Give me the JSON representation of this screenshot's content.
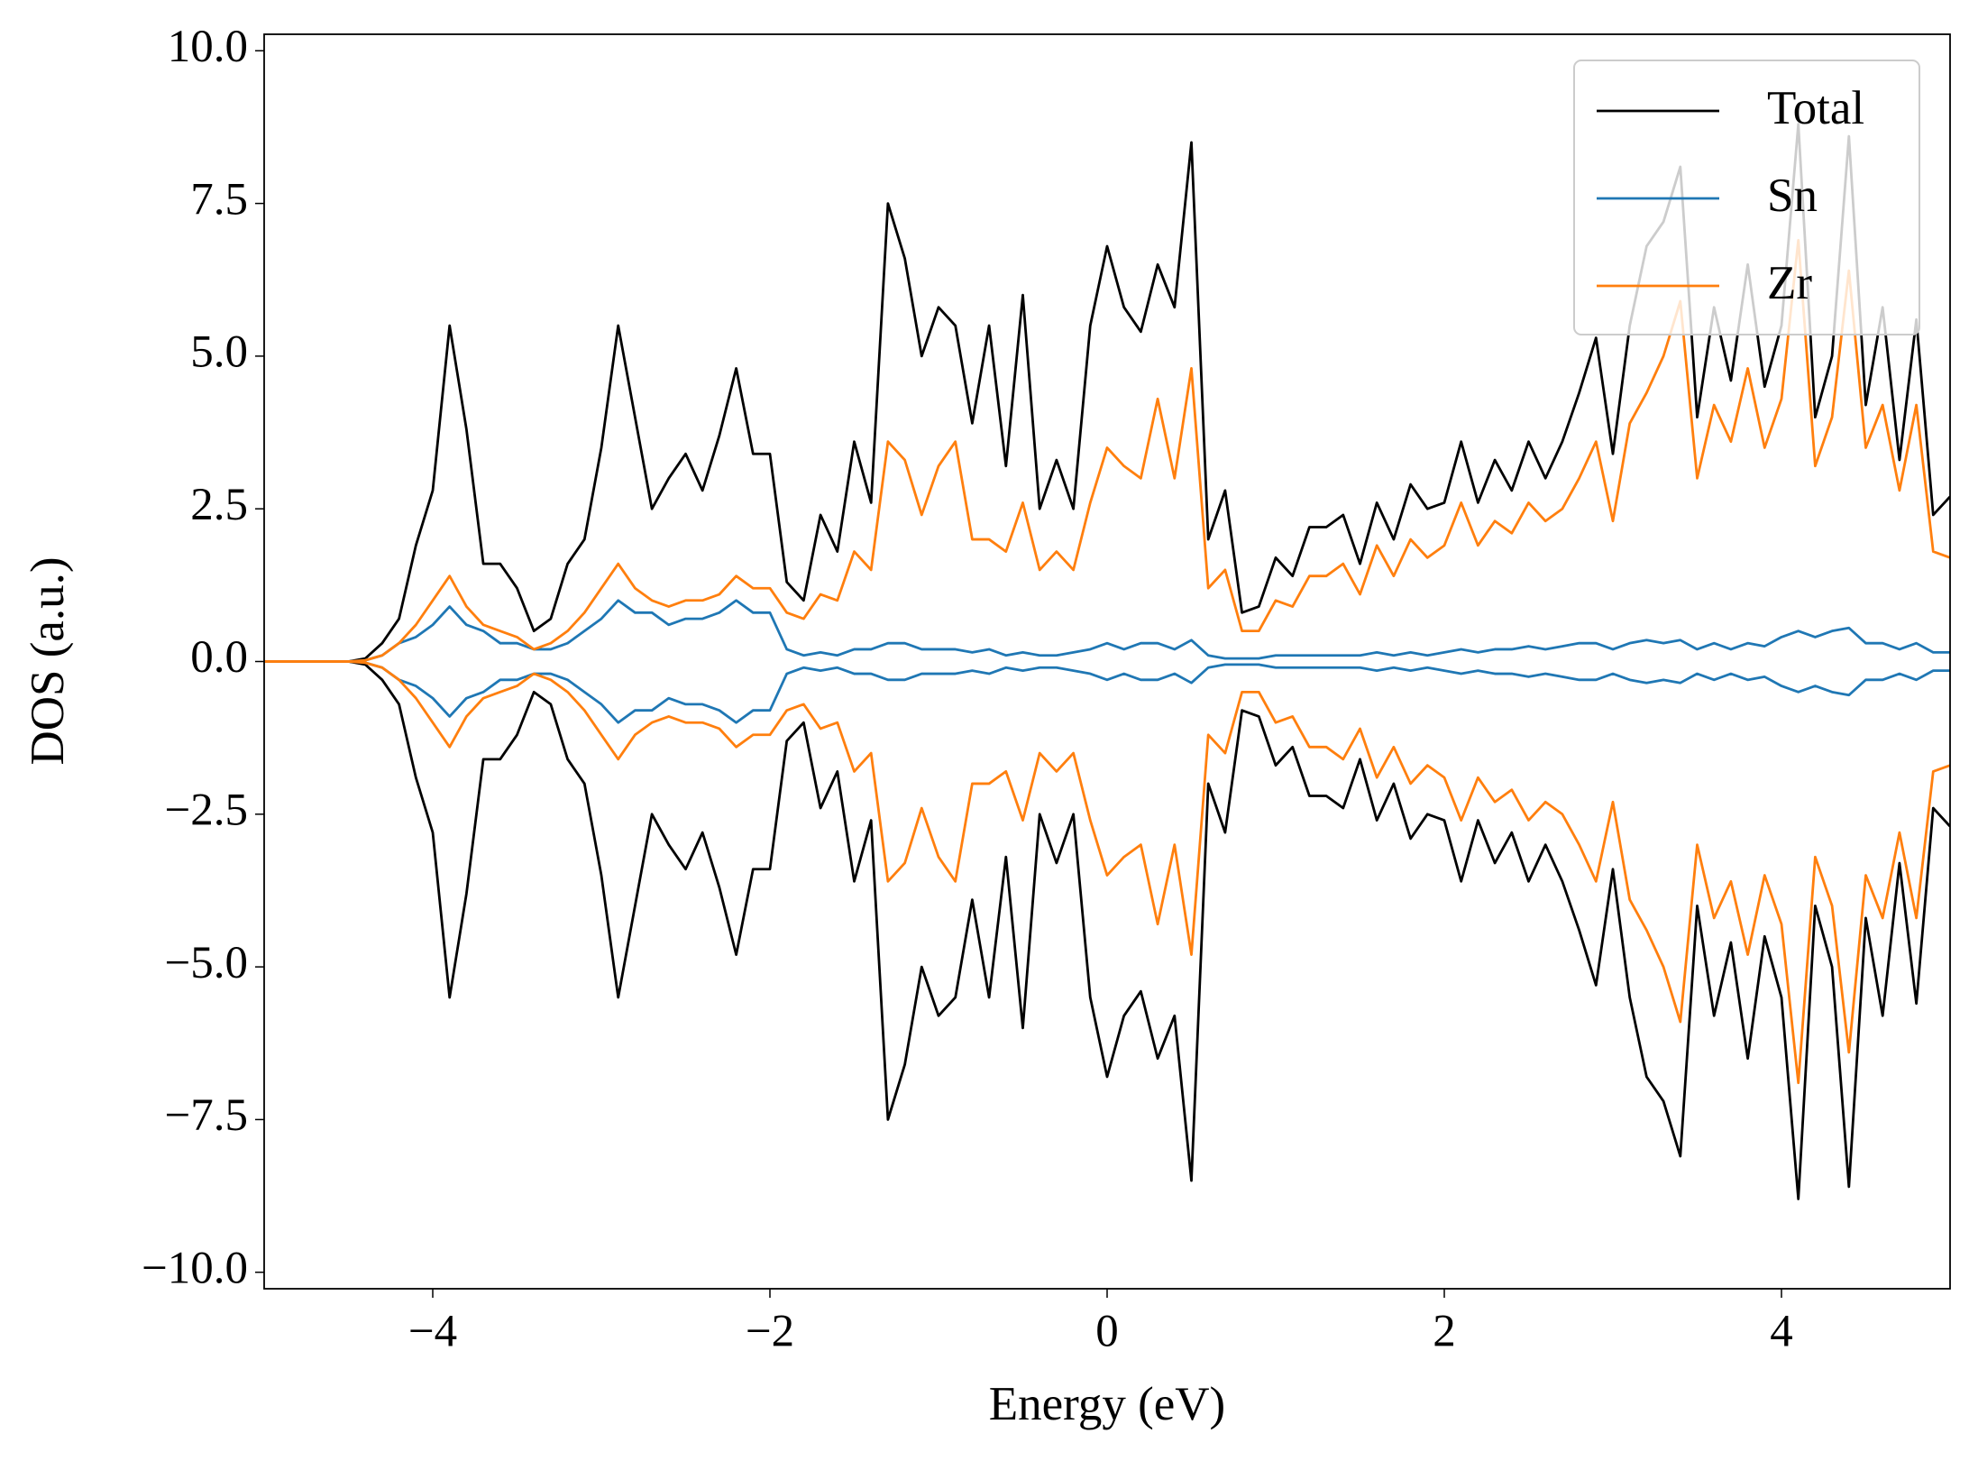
{
  "chart_data": {
    "type": "line",
    "x_label": "Energy (eV)",
    "y_label": "DOS (a.u.)",
    "xlim": [
      -5,
      5
    ],
    "ylim": [
      -10.27,
      10.27
    ],
    "xticks": [
      {
        "value": -4,
        "label": "−4"
      },
      {
        "value": -2,
        "label": "−2"
      },
      0,
      2,
      4
    ],
    "yticks": [
      {
        "value": -10,
        "label": "−10.0"
      },
      {
        "value": -7.5,
        "label": "−7.5"
      },
      {
        "value": -5,
        "label": "−5.0"
      },
      {
        "value": -2.5,
        "label": "−2.5"
      },
      {
        "value": 0,
        "label": "0.0"
      },
      2.5,
      {
        "value": 5,
        "label": "5.0"
      },
      7.5,
      {
        "value": 10,
        "label": "10.0"
      }
    ],
    "legend": "upper right",
    "x": [
      -5,
      -4.9,
      -4.8,
      -4.7,
      -4.6,
      -4.5,
      -4.4,
      -4.3,
      -4.2,
      -4.1,
      -4,
      -3.9,
      -3.8,
      -3.7,
      -3.6,
      -3.5,
      -3.4,
      -3.3,
      -3.2,
      -3.1,
      -3,
      -2.9,
      -2.8,
      -2.7,
      -2.6,
      -2.5,
      -2.4,
      -2.3,
      -2.2,
      -2.1,
      -2,
      -1.9,
      -1.8,
      -1.7,
      -1.6,
      -1.5,
      -1.4,
      -1.3,
      -1.2,
      -1.1,
      -1,
      -0.9,
      -0.8,
      -0.7,
      -0.6,
      -0.5,
      -0.4,
      -0.3,
      -0.2,
      -0.1,
      0,
      0.1,
      0.2,
      0.3,
      0.4,
      0.5,
      0.6,
      0.7,
      0.8,
      0.9,
      1,
      1.1,
      1.2,
      1.3,
      1.4,
      1.5,
      1.6,
      1.7,
      1.8,
      1.9,
      2,
      2.1,
      2.2,
      2.3,
      2.4,
      2.5,
      2.6,
      2.7,
      2.8,
      2.9,
      3,
      3.1,
      3.2,
      3.3,
      3.4,
      3.5,
      3.6,
      3.7,
      3.8,
      3.9,
      4,
      4.1,
      4.2,
      4.3,
      4.4,
      4.5,
      4.6,
      4.7,
      4.8,
      4.9,
      5
    ],
    "series": [
      {
        "name": "Total",
        "color": "#000000",
        "values": [
          0,
          0,
          0,
          0,
          0,
          0,
          0.05,
          0.3,
          0.7,
          1.9,
          2.8,
          5.5,
          3.8,
          1.6,
          1.6,
          1.2,
          0.5,
          0.7,
          1.6,
          2.0,
          3.5,
          5.5,
          4.0,
          2.5,
          3.0,
          3.4,
          2.8,
          3.7,
          4.8,
          3.4,
          3.4,
          1.3,
          1.0,
          2.4,
          1.8,
          3.6,
          2.6,
          7.5,
          6.6,
          5.0,
          5.8,
          5.5,
          3.9,
          5.5,
          3.2,
          6.0,
          2.5,
          3.3,
          2.5,
          5.5,
          6.8,
          5.8,
          5.4,
          6.5,
          5.8,
          8.5,
          2.0,
          2.8,
          0.8,
          0.9,
          1.7,
          1.4,
          2.2,
          2.2,
          2.4,
          1.6,
          2.6,
          2.0,
          2.9,
          2.5,
          2.6,
          3.6,
          2.6,
          3.3,
          2.8,
          3.6,
          3.0,
          3.6,
          4.4,
          5.3,
          3.4,
          5.5,
          6.8,
          7.2,
          8.1,
          4.0,
          5.8,
          4.6,
          6.5,
          4.5,
          5.5,
          8.8,
          4.0,
          5.0,
          8.6,
          4.2,
          5.8,
          3.3,
          5.6,
          2.4,
          2.7
        ]
      },
      {
        "color": "#000000",
        "values": [
          0,
          0,
          0,
          0,
          0,
          0,
          -0.05,
          -0.3,
          -0.7,
          -1.9,
          -2.8,
          -5.5,
          -3.8,
          -1.6,
          -1.6,
          -1.2,
          -0.5,
          -0.7,
          -1.6,
          -2.0,
          -3.5,
          -5.5,
          -4.0,
          -2.5,
          -3.0,
          -3.4,
          -2.8,
          -3.7,
          -4.8,
          -3.4,
          -3.4,
          -1.3,
          -1.0,
          -2.4,
          -1.8,
          -3.6,
          -2.6,
          -7.5,
          -6.6,
          -5.0,
          -5.8,
          -5.5,
          -3.9,
          -5.5,
          -3.2,
          -6.0,
          -2.5,
          -3.3,
          -2.5,
          -5.5,
          -6.8,
          -5.8,
          -5.4,
          -6.5,
          -5.8,
          -8.5,
          -2.0,
          -2.8,
          -0.8,
          -0.9,
          -1.7,
          -1.4,
          -2.2,
          -2.2,
          -2.4,
          -1.6,
          -2.6,
          -2.0,
          -2.9,
          -2.5,
          -2.6,
          -3.6,
          -2.6,
          -3.3,
          -2.8,
          -3.6,
          -3.0,
          -3.6,
          -4.4,
          -5.3,
          -3.4,
          -5.5,
          -6.8,
          -7.2,
          -8.1,
          -4.0,
          -5.8,
          -4.6,
          -6.5,
          -4.5,
          -5.5,
          -8.8,
          -4.0,
          -5.0,
          -8.6,
          -4.2,
          -5.8,
          -3.3,
          -5.6,
          -2.4,
          -2.7
        ]
      },
      {
        "name": "Sn",
        "color": "#1f77b4",
        "values": [
          0,
          0,
          0,
          0,
          0,
          0,
          0.02,
          0.1,
          0.3,
          0.4,
          0.6,
          0.9,
          0.6,
          0.5,
          0.3,
          0.3,
          0.2,
          0.2,
          0.3,
          0.5,
          0.7,
          1.0,
          0.8,
          0.8,
          0.6,
          0.7,
          0.7,
          0.8,
          1.0,
          0.8,
          0.8,
          0.2,
          0.1,
          0.15,
          0.1,
          0.2,
          0.2,
          0.3,
          0.3,
          0.2,
          0.2,
          0.2,
          0.15,
          0.2,
          0.1,
          0.15,
          0.1,
          0.1,
          0.15,
          0.2,
          0.3,
          0.2,
          0.3,
          0.3,
          0.2,
          0.35,
          0.1,
          0.05,
          0.05,
          0.05,
          0.1,
          0.1,
          0.1,
          0.1,
          0.1,
          0.1,
          0.15,
          0.1,
          0.15,
          0.1,
          0.15,
          0.2,
          0.15,
          0.2,
          0.2,
          0.25,
          0.2,
          0.25,
          0.3,
          0.3,
          0.2,
          0.3,
          0.35,
          0.3,
          0.35,
          0.2,
          0.3,
          0.2,
          0.3,
          0.25,
          0.4,
          0.5,
          0.4,
          0.5,
          0.55,
          0.3,
          0.3,
          0.2,
          0.3,
          0.15,
          0.15
        ]
      },
      {
        "color": "#1f77b4",
        "values": [
          0,
          0,
          0,
          0,
          0,
          0,
          -0.02,
          -0.1,
          -0.3,
          -0.4,
          -0.6,
          -0.9,
          -0.6,
          -0.5,
          -0.3,
          -0.3,
          -0.2,
          -0.2,
          -0.3,
          -0.5,
          -0.7,
          -1.0,
          -0.8,
          -0.8,
          -0.6,
          -0.7,
          -0.7,
          -0.8,
          -1.0,
          -0.8,
          -0.8,
          -0.2,
          -0.1,
          -0.15,
          -0.1,
          -0.2,
          -0.2,
          -0.3,
          -0.3,
          -0.2,
          -0.2,
          -0.2,
          -0.15,
          -0.2,
          -0.1,
          -0.15,
          -0.1,
          -0.1,
          -0.15,
          -0.2,
          -0.3,
          -0.2,
          -0.3,
          -0.3,
          -0.2,
          -0.35,
          -0.1,
          -0.05,
          -0.05,
          -0.05,
          -0.1,
          -0.1,
          -0.1,
          -0.1,
          -0.1,
          -0.1,
          -0.15,
          -0.1,
          -0.15,
          -0.1,
          -0.15,
          -0.2,
          -0.15,
          -0.2,
          -0.2,
          -0.25,
          -0.2,
          -0.25,
          -0.3,
          -0.3,
          -0.2,
          -0.3,
          -0.35,
          -0.3,
          -0.35,
          -0.2,
          -0.3,
          -0.2,
          -0.3,
          -0.25,
          -0.4,
          -0.5,
          -0.4,
          -0.5,
          -0.55,
          -0.3,
          -0.3,
          -0.2,
          -0.3,
          -0.15,
          -0.15
        ]
      },
      {
        "name": "Zr",
        "color": "#ff7f0e",
        "values": [
          0,
          0,
          0,
          0,
          0,
          0,
          0.02,
          0.1,
          0.3,
          0.6,
          1.0,
          1.4,
          0.9,
          0.6,
          0.5,
          0.4,
          0.2,
          0.3,
          0.5,
          0.8,
          1.2,
          1.6,
          1.2,
          1.0,
          0.9,
          1.0,
          1.0,
          1.1,
          1.4,
          1.2,
          1.2,
          0.8,
          0.7,
          1.1,
          1.0,
          1.8,
          1.5,
          3.6,
          3.3,
          2.4,
          3.2,
          3.6,
          2.0,
          2.0,
          1.8,
          2.6,
          1.5,
          1.8,
          1.5,
          2.6,
          3.5,
          3.2,
          3.0,
          4.3,
          3.0,
          4.8,
          1.2,
          1.5,
          0.5,
          0.5,
          1.0,
          0.9,
          1.4,
          1.4,
          1.6,
          1.1,
          1.9,
          1.4,
          2.0,
          1.7,
          1.9,
          2.6,
          1.9,
          2.3,
          2.1,
          2.6,
          2.3,
          2.5,
          3.0,
          3.6,
          2.3,
          3.9,
          4.4,
          5.0,
          5.9,
          3.0,
          4.2,
          3.6,
          4.8,
          3.5,
          4.3,
          6.9,
          3.2,
          4.0,
          6.4,
          3.5,
          4.2,
          2.8,
          4.2,
          1.8,
          1.7
        ]
      },
      {
        "color": "#ff7f0e",
        "values": [
          0,
          0,
          0,
          0,
          0,
          0,
          -0.02,
          -0.1,
          -0.3,
          -0.6,
          -1.0,
          -1.4,
          -0.9,
          -0.6,
          -0.5,
          -0.4,
          -0.2,
          -0.3,
          -0.5,
          -0.8,
          -1.2,
          -1.6,
          -1.2,
          -1.0,
          -0.9,
          -1.0,
          -1.0,
          -1.1,
          -1.4,
          -1.2,
          -1.2,
          -0.8,
          -0.7,
          -1.1,
          -1.0,
          -1.8,
          -1.5,
          -3.6,
          -3.3,
          -2.4,
          -3.2,
          -3.6,
          -2.0,
          -2.0,
          -1.8,
          -2.6,
          -1.5,
          -1.8,
          -1.5,
          -2.6,
          -3.5,
          -3.2,
          -3.0,
          -4.3,
          -3.0,
          -4.8,
          -1.2,
          -1.5,
          -0.5,
          -0.5,
          -1.0,
          -0.9,
          -1.4,
          -1.4,
          -1.6,
          -1.1,
          -1.9,
          -1.4,
          -2.0,
          -1.7,
          -1.9,
          -2.6,
          -1.9,
          -2.3,
          -2.1,
          -2.6,
          -2.3,
          -2.5,
          -3.0,
          -3.6,
          -2.3,
          -3.9,
          -4.4,
          -5.0,
          -5.9,
          -3.0,
          -4.2,
          -3.6,
          -4.8,
          -3.5,
          -4.3,
          -6.9,
          -3.2,
          -4.0,
          -6.4,
          -3.5,
          -4.2,
          -2.8,
          -4.2,
          -1.8,
          -1.7
        ]
      }
    ]
  }
}
